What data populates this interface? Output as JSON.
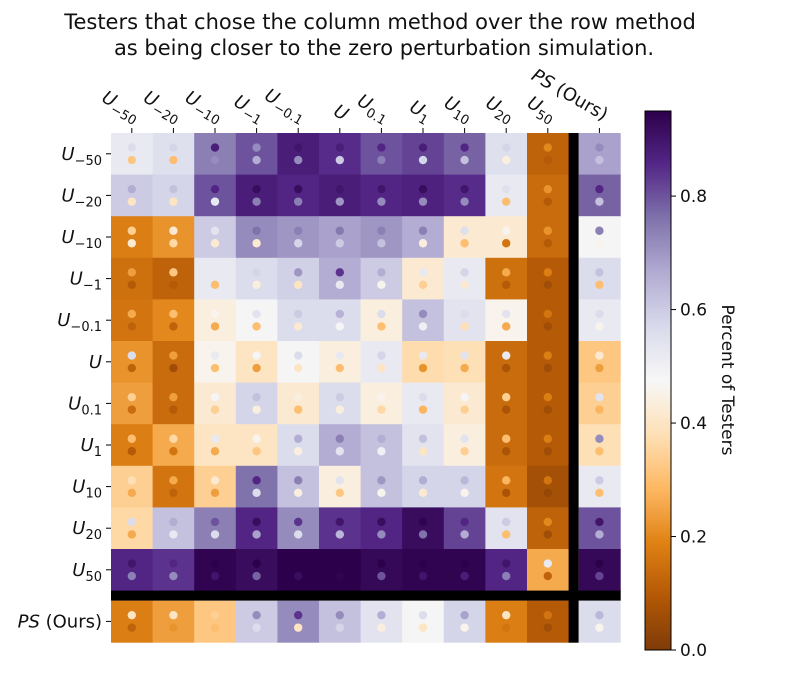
{
  "chart_data": {
    "type": "heatmap",
    "title": "Testers that chose the column method over the row method as being closer to the zero perturbation simulation.",
    "title_lines": [
      "Testers that chose the column method over the row method",
      "as being closer to the zero perturbation simulation."
    ],
    "row_labels": [
      {
        "base": "U",
        "sub": "−50"
      },
      {
        "base": "U",
        "sub": "−20"
      },
      {
        "base": "U",
        "sub": "−10"
      },
      {
        "base": "U",
        "sub": "−1"
      },
      {
        "base": "U",
        "sub": "−0.1"
      },
      {
        "base": "U",
        "sub": ""
      },
      {
        "base": "U",
        "sub": "0.1"
      },
      {
        "base": "U",
        "sub": "1"
      },
      {
        "base": "U",
        "sub": "10"
      },
      {
        "base": "U",
        "sub": "20"
      },
      {
        "base": "U",
        "sub": "50"
      },
      {
        "base": "PS",
        "sub": "",
        "suffix": " (Ours)"
      }
    ],
    "col_labels": [
      {
        "base": "U",
        "sub": "−50"
      },
      {
        "base": "U",
        "sub": "−20"
      },
      {
        "base": "U",
        "sub": "−10"
      },
      {
        "base": "U",
        "sub": "−1"
      },
      {
        "base": "U",
        "sub": "−0.1"
      },
      {
        "base": "U",
        "sub": ""
      },
      {
        "base": "U",
        "sub": "0.1"
      },
      {
        "base": "U",
        "sub": "1"
      },
      {
        "base": "U",
        "sub": "10"
      },
      {
        "base": "U",
        "sub": "20"
      },
      {
        "base": "U",
        "sub": "50"
      },
      {
        "base": "PS",
        "sub": "",
        "suffix": " (Ours)"
      }
    ],
    "values": [
      [
        0.52,
        0.55,
        0.74,
        0.8,
        0.88,
        0.85,
        0.8,
        0.82,
        0.78,
        0.55,
        0.12,
        0.68
      ],
      [
        0.6,
        0.58,
        0.8,
        0.88,
        0.86,
        0.88,
        0.86,
        0.87,
        0.85,
        0.52,
        0.14,
        0.78
      ],
      [
        0.18,
        0.22,
        0.6,
        0.72,
        0.7,
        0.68,
        0.7,
        0.66,
        0.42,
        0.42,
        0.14,
        0.48
      ],
      [
        0.15,
        0.12,
        0.52,
        0.56,
        0.59,
        0.66,
        0.6,
        0.42,
        0.52,
        0.15,
        0.1,
        0.56
      ],
      [
        0.16,
        0.2,
        0.44,
        0.48,
        0.56,
        0.56,
        0.44,
        0.62,
        0.54,
        0.46,
        0.1,
        0.52
      ],
      [
        0.22,
        0.14,
        0.46,
        0.4,
        0.48,
        0.44,
        0.52,
        0.37,
        0.38,
        0.14,
        0.1,
        0.32
      ],
      [
        0.24,
        0.14,
        0.42,
        0.58,
        0.42,
        0.56,
        0.44,
        0.52,
        0.42,
        0.14,
        0.1,
        0.34
      ],
      [
        0.18,
        0.26,
        0.4,
        0.4,
        0.56,
        0.66,
        0.62,
        0.54,
        0.44,
        0.14,
        0.1,
        0.38
      ],
      [
        0.34,
        0.16,
        0.34,
        0.76,
        0.62,
        0.44,
        0.62,
        0.58,
        0.58,
        0.16,
        0.07,
        0.52
      ],
      [
        0.36,
        0.62,
        0.74,
        0.86,
        0.72,
        0.84,
        0.86,
        0.92,
        0.82,
        0.54,
        0.12,
        0.8
      ],
      [
        0.86,
        0.84,
        0.94,
        0.92,
        0.95,
        0.95,
        0.93,
        0.94,
        0.94,
        0.86,
        0.26,
        0.93
      ],
      [
        0.18,
        0.24,
        0.32,
        0.6,
        0.72,
        0.62,
        0.54,
        0.48,
        0.58,
        0.18,
        0.1,
        0.56
      ]
    ],
    "dots_top": [
      [
        0.56,
        0.58,
        0.88,
        0.72,
        0.9,
        0.88,
        0.86,
        0.88,
        0.86,
        0.58,
        0.2,
        0.72
      ],
      [
        0.66,
        0.62,
        0.86,
        0.92,
        0.92,
        0.9,
        0.9,
        0.92,
        0.9,
        0.55,
        0.22,
        0.86
      ],
      [
        0.34,
        0.42,
        0.54,
        0.76,
        0.74,
        0.75,
        0.74,
        0.74,
        0.55,
        0.46,
        0.22,
        0.74
      ],
      [
        0.24,
        0.32,
        0.52,
        0.58,
        0.7,
        0.84,
        0.66,
        0.52,
        0.58,
        0.26,
        0.18,
        0.62
      ],
      [
        0.26,
        0.3,
        0.46,
        0.54,
        0.6,
        0.65,
        0.56,
        0.72,
        0.56,
        0.54,
        0.16,
        0.56
      ],
      [
        0.56,
        0.24,
        0.52,
        0.48,
        0.56,
        0.52,
        0.58,
        0.52,
        0.54,
        0.52,
        0.18,
        0.42
      ],
      [
        0.34,
        0.24,
        0.48,
        0.62,
        0.44,
        0.6,
        0.46,
        0.56,
        0.48,
        0.34,
        0.18,
        0.54
      ],
      [
        0.3,
        0.36,
        0.52,
        0.46,
        0.66,
        0.74,
        0.66,
        0.62,
        0.54,
        0.3,
        0.18,
        0.72
      ],
      [
        0.38,
        0.26,
        0.42,
        0.86,
        0.74,
        0.54,
        0.7,
        0.66,
        0.64,
        0.28,
        0.16,
        0.6
      ],
      [
        0.56,
        0.66,
        0.8,
        0.92,
        0.84,
        0.9,
        0.92,
        0.94,
        0.86,
        0.6,
        0.2,
        0.9
      ],
      [
        0.9,
        0.86,
        0.96,
        0.96,
        0.96,
        0.96,
        0.96,
        0.96,
        0.95,
        0.9,
        0.52,
        0.95
      ],
      [
        0.4,
        0.4,
        0.34,
        0.72,
        0.84,
        0.72,
        0.66,
        0.56,
        0.68,
        0.4,
        0.16,
        0.64
      ]
    ],
    "dots_bottom": [
      [
        0.32,
        0.3,
        0.72,
        0.66,
        0.72,
        0.6,
        0.74,
        0.58,
        0.62,
        0.44,
        0.1,
        0.62
      ],
      [
        0.4,
        0.4,
        0.52,
        0.74,
        0.74,
        0.7,
        0.72,
        0.72,
        0.72,
        0.3,
        0.1,
        0.62
      ],
      [
        0.42,
        0.36,
        0.42,
        0.42,
        0.58,
        0.6,
        0.62,
        0.44,
        0.3,
        0.16,
        0.1,
        0.46
      ],
      [
        0.1,
        0.1,
        0.3,
        0.44,
        0.4,
        0.52,
        0.46,
        0.34,
        0.42,
        0.1,
        0.06,
        0.3
      ],
      [
        0.12,
        0.12,
        0.26,
        0.3,
        0.42,
        0.48,
        0.3,
        0.5,
        0.38,
        0.26,
        0.06,
        0.46
      ],
      [
        0.12,
        0.06,
        0.3,
        0.24,
        0.4,
        0.3,
        0.4,
        0.22,
        0.26,
        0.08,
        0.06,
        0.24
      ],
      [
        0.14,
        0.1,
        0.34,
        0.44,
        0.3,
        0.44,
        0.36,
        0.28,
        0.34,
        0.08,
        0.06,
        0.28
      ],
      [
        0.1,
        0.16,
        0.26,
        0.32,
        0.44,
        0.54,
        0.5,
        0.4,
        0.34,
        0.08,
        0.06,
        0.3
      ],
      [
        0.26,
        0.12,
        0.24,
        0.56,
        0.44,
        0.32,
        0.46,
        0.42,
        0.46,
        0.08,
        0.04,
        0.3
      ],
      [
        0.26,
        0.52,
        0.56,
        0.68,
        0.56,
        0.64,
        0.72,
        0.76,
        0.66,
        0.3,
        0.06,
        0.66
      ],
      [
        0.74,
        0.72,
        0.9,
        0.78,
        0.92,
        0.94,
        0.8,
        0.9,
        0.88,
        0.74,
        0.12,
        0.82
      ],
      [
        0.12,
        0.22,
        0.3,
        0.56,
        0.4,
        0.58,
        0.44,
        0.4,
        0.46,
        0.16,
        0.06,
        0.46
      ]
    ],
    "separator_after_index": 10,
    "colormap": "PuOr",
    "vmin": 0.0,
    "vmax": 0.95,
    "colorbar": {
      "ticks": [
        0.0,
        0.2,
        0.4,
        0.6,
        0.8
      ],
      "tick_labels": [
        "0.0",
        "0.2",
        "0.4",
        "0.6",
        "0.8"
      ],
      "label": "Percent of Testers"
    },
    "colors": {
      "low": "#7f3b08",
      "mid": "#f7f7f7",
      "high": "#2d004b",
      "separator": "#000000"
    }
  }
}
